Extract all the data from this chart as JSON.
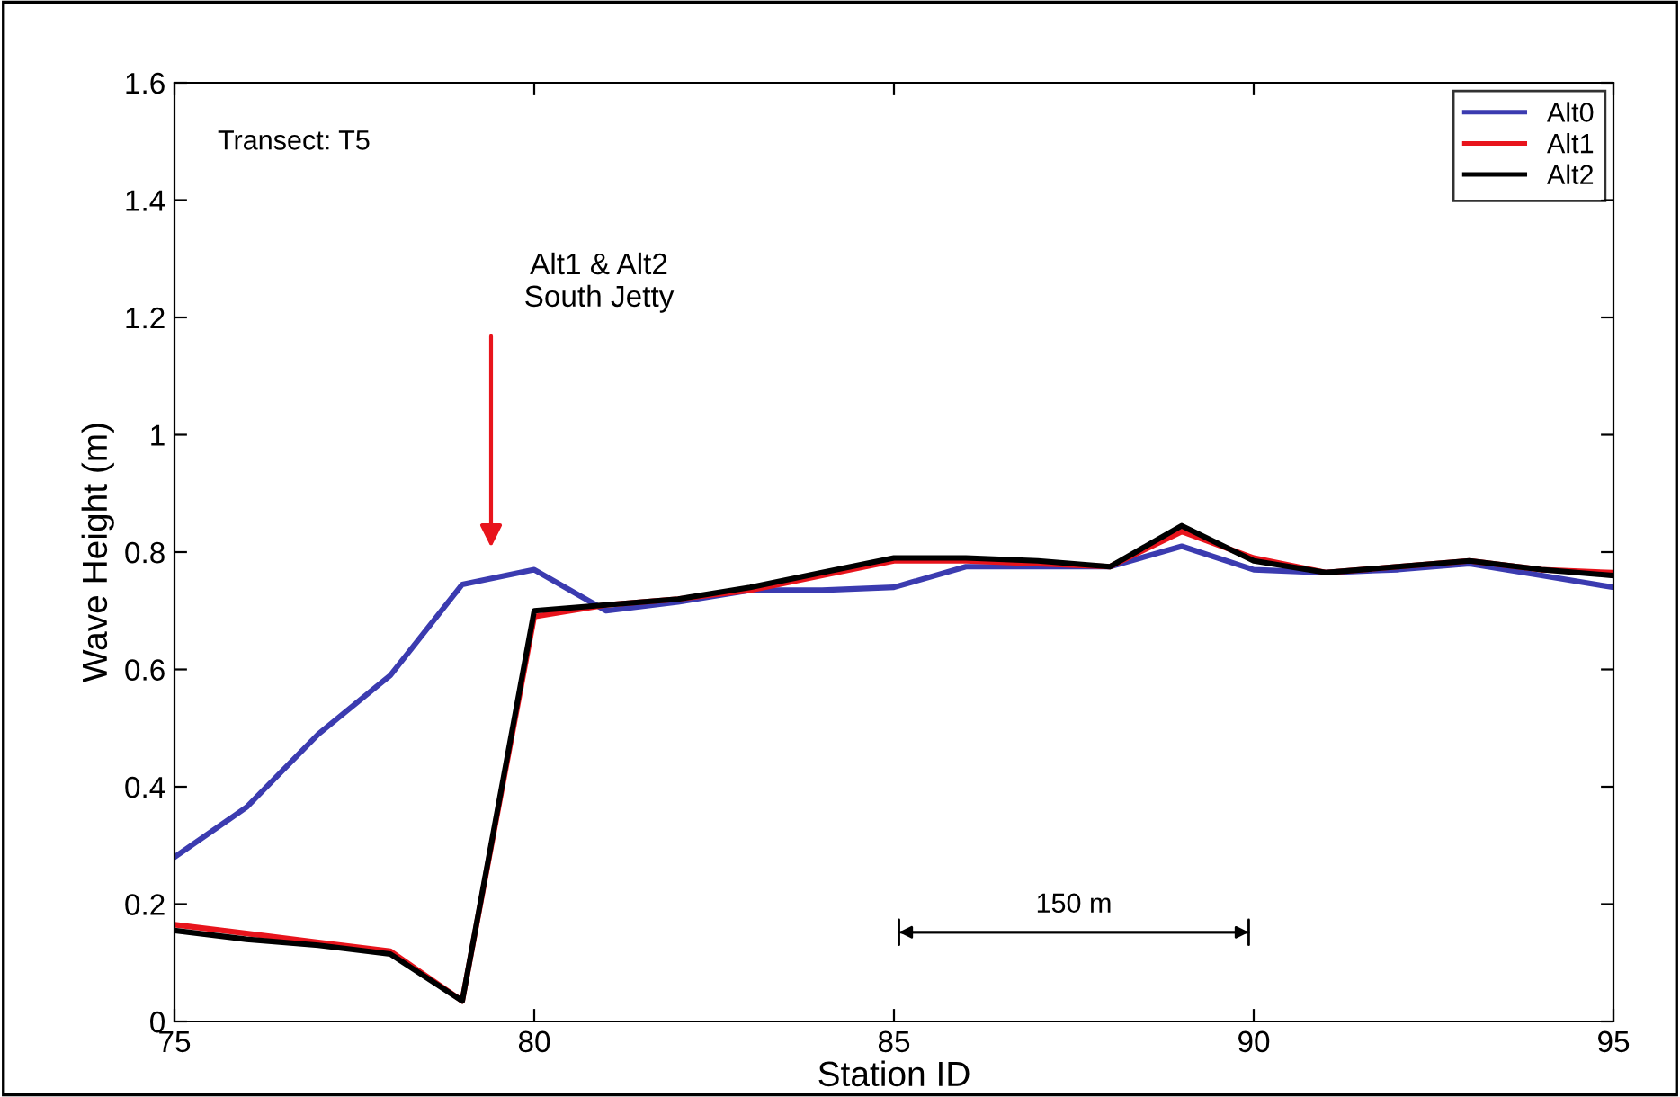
{
  "chart_data": {
    "type": "line",
    "xlabel": "Station ID",
    "ylabel": "Wave Height (m)",
    "x": [
      75,
      76,
      77,
      78,
      79,
      80,
      81,
      82,
      83,
      84,
      85,
      86,
      87,
      88,
      89,
      90,
      91,
      92,
      93,
      94,
      95
    ],
    "series": [
      {
        "name": "Alt0",
        "color": "#3b3bb0",
        "values": [
          0.28,
          0.365,
          0.49,
          0.59,
          0.745,
          0.77,
          0.7,
          0.715,
          0.735,
          0.735,
          0.74,
          0.775,
          0.775,
          0.775,
          0.81,
          0.77,
          0.765,
          0.77,
          0.78,
          0.76,
          0.74
        ]
      },
      {
        "name": "Alt1",
        "color": "#e8141c",
        "values": [
          0.165,
          0.15,
          0.135,
          0.12,
          0.035,
          0.69,
          0.71,
          0.72,
          0.735,
          0.76,
          0.785,
          0.785,
          0.78,
          0.775,
          0.835,
          0.79,
          0.765,
          0.775,
          0.785,
          0.77,
          0.765
        ]
      },
      {
        "name": "Alt2",
        "color": "#000000",
        "values": [
          0.155,
          0.14,
          0.13,
          0.115,
          0.035,
          0.7,
          0.71,
          0.72,
          0.74,
          0.765,
          0.79,
          0.79,
          0.785,
          0.775,
          0.845,
          0.785,
          0.765,
          0.775,
          0.785,
          0.77,
          0.76
        ]
      }
    ],
    "xlim": [
      75,
      95
    ],
    "xticks": [
      75,
      80,
      85,
      90,
      95
    ],
    "ylim": [
      0,
      1.6
    ],
    "yticks": [
      0,
      0.2,
      0.4,
      0.6,
      0.8,
      1,
      1.2,
      1.4,
      1.6
    ],
    "grid": false,
    "legend": "top right",
    "marker": "none",
    "line_style": "solid",
    "annotations": [
      "Transect: T5",
      "Alt1 & Alt2\nSouth Jetty",
      "150 m"
    ]
  }
}
